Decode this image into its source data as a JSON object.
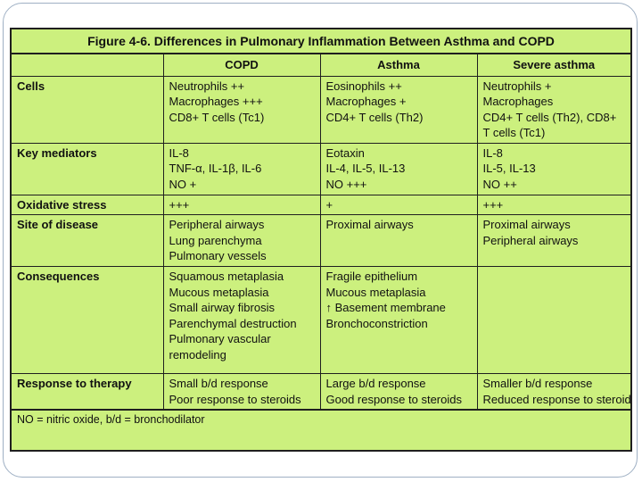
{
  "title": "Figure 4-6. Differences in Pulmonary Inflammation Between Asthma and COPD",
  "columns": [
    "",
    "COPD",
    "Asthma",
    "Severe asthma"
  ],
  "rows": [
    {
      "label": "Cells",
      "copd": [
        "Neutrophils ++",
        "Macrophages +++",
        "CD8+ T cells (Tc1)"
      ],
      "asthma": [
        "Eosinophils ++",
        "Macrophages +",
        "CD4+ T cells (Th2)"
      ],
      "severe": [
        "Neutrophils +",
        "Macrophages",
        "CD4+ T cells (Th2), CD8+ T cells (Tc1)"
      ]
    },
    {
      "label": "Key mediators",
      "copd": [
        "IL-8",
        "TNF-α, IL-1β, IL-6",
        "NO +"
      ],
      "asthma": [
        "Eotaxin",
        "IL-4, IL-5, IL-13",
        "NO +++"
      ],
      "severe": [
        "IL-8",
        "IL-5, IL-13",
        "NO ++"
      ]
    },
    {
      "label": "Oxidative stress",
      "copd": [
        "+++"
      ],
      "asthma": [
        "+"
      ],
      "severe": [
        "+++"
      ]
    },
    {
      "label": "Site of disease",
      "copd": [
        "Peripheral airways",
        "Lung parenchyma",
        "Pulmonary vessels"
      ],
      "asthma": [
        "Proximal airways"
      ],
      "severe": [
        "Proximal airways",
        "Peripheral airways"
      ]
    },
    {
      "label": "Consequences",
      "copd": [
        "Squamous metaplasia",
        "Mucous metaplasia",
        "Small airway fibrosis",
        "Parenchymal destruction",
        "Pulmonary vascular",
        " remodeling"
      ],
      "asthma": [
        "Fragile epithelium",
        "Mucous metaplasia",
        "↑ Basement membrane",
        "Bronchoconstriction"
      ],
      "severe": []
    },
    {
      "label": "Response to therapy",
      "copd": [
        "Small b/d response",
        "Poor response to steroids"
      ],
      "asthma": [
        "Large b/d response",
        "Good response to steroids"
      ],
      "severe": [
        "Smaller b/d response",
        "Reduced response to steroids"
      ]
    }
  ],
  "footnote": "NO = nitric oxide, b/d = bronchodilator"
}
